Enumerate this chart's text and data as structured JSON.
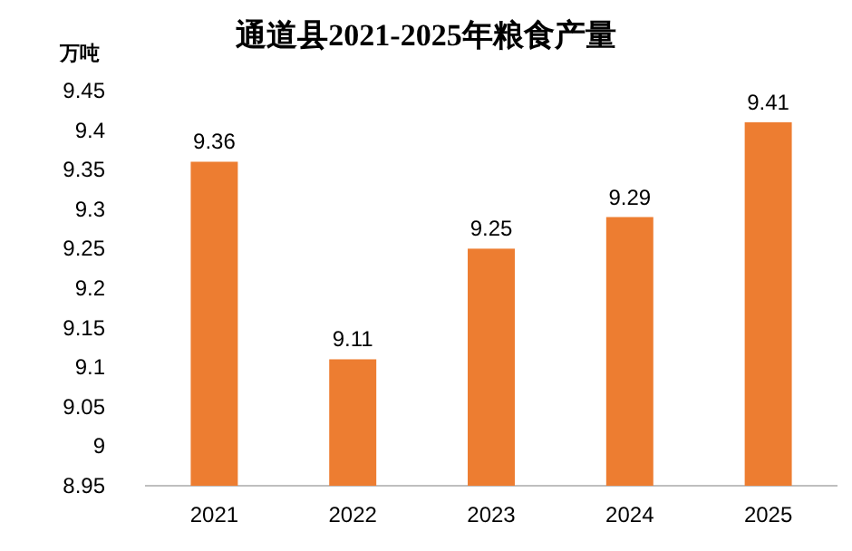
{
  "chart_data": {
    "type": "bar",
    "title": "通道县2021-2025年粮食产量",
    "ylabel": "万吨",
    "categories": [
      "2021",
      "2022",
      "2023",
      "2024",
      "2025"
    ],
    "values": [
      9.36,
      9.11,
      9.25,
      9.29,
      9.41
    ],
    "color": "#ed7d31",
    "ylim": [
      8.95,
      9.45
    ],
    "yticks": [
      8.95,
      9,
      9.05,
      9.1,
      9.15,
      9.2,
      9.25,
      9.3,
      9.35,
      9.4,
      9.45
    ],
    "data_labels": true,
    "grid": false
  }
}
